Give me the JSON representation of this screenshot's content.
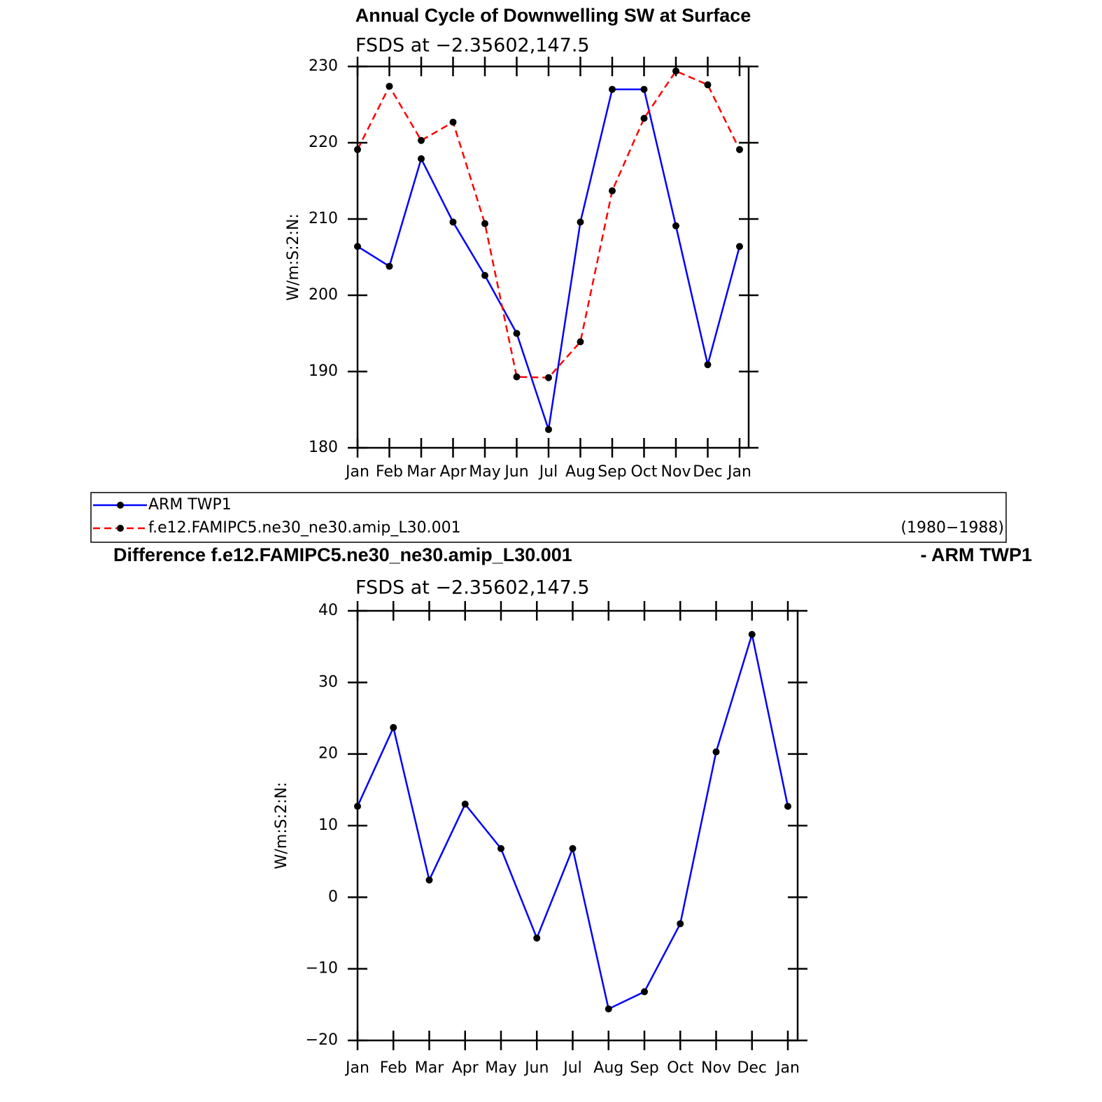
{
  "chart_data": [
    {
      "type": "line",
      "title": "Annual Cycle of Downwelling SW at Surface",
      "subtitle": "FSDS at −2.35602,147.5",
      "ylabel": "W/m:S:2:N:",
      "categories": [
        "Jan",
        "Feb",
        "Mar",
        "Apr",
        "May",
        "Jun",
        "Jul",
        "Aug",
        "Sep",
        "Oct",
        "Nov",
        "Dec",
        "Jan"
      ],
      "ylim": [
        180,
        230
      ],
      "yticks": [
        180,
        190,
        200,
        210,
        220,
        230
      ],
      "markers": true,
      "legend_note": "(1980−1988)",
      "series": [
        {
          "name": "ARM TWP1",
          "color": "#0000ff",
          "dash": false,
          "values": [
            206.4,
            203.8,
            217.9,
            209.6,
            202.6,
            195.0,
            182.4,
            209.6,
            227.0,
            227.0,
            209.1,
            190.9,
            206.4
          ]
        },
        {
          "name": "f.e12.FAMIPC5.ne30_ne30.amip_L30.001",
          "color": "#ff0000",
          "dash": true,
          "values": [
            219.1,
            227.4,
            220.3,
            222.7,
            209.4,
            189.3,
            189.2,
            193.9,
            213.7,
            223.2,
            229.4,
            227.6,
            219.1
          ]
        }
      ]
    },
    {
      "type": "line",
      "title": "Difference f.e12.FAMIPC5.ne30_ne30.amip_L30.001",
      "title_right": "- ARM TWP1",
      "subtitle": "FSDS at −2.35602,147.5",
      "ylabel": "W/m:S:2:N:",
      "categories": [
        "Jan",
        "Feb",
        "Mar",
        "Apr",
        "May",
        "Jun",
        "Jul",
        "Aug",
        "Sep",
        "Oct",
        "Nov",
        "Dec",
        "Jan"
      ],
      "ylim": [
        -20,
        40
      ],
      "yticks": [
        {
          "value": -20,
          "label": "−20"
        },
        {
          "value": -10,
          "label": "−10"
        },
        0,
        10,
        20,
        30,
        40
      ],
      "markers": true,
      "series": [
        {
          "color": "#0000ff",
          "dash": false,
          "values": [
            12.7,
            23.7,
            2.4,
            13.0,
            6.8,
            -5.7,
            6.8,
            -15.6,
            -13.2,
            -3.7,
            20.3,
            36.7,
            12.7
          ]
        }
      ]
    }
  ]
}
